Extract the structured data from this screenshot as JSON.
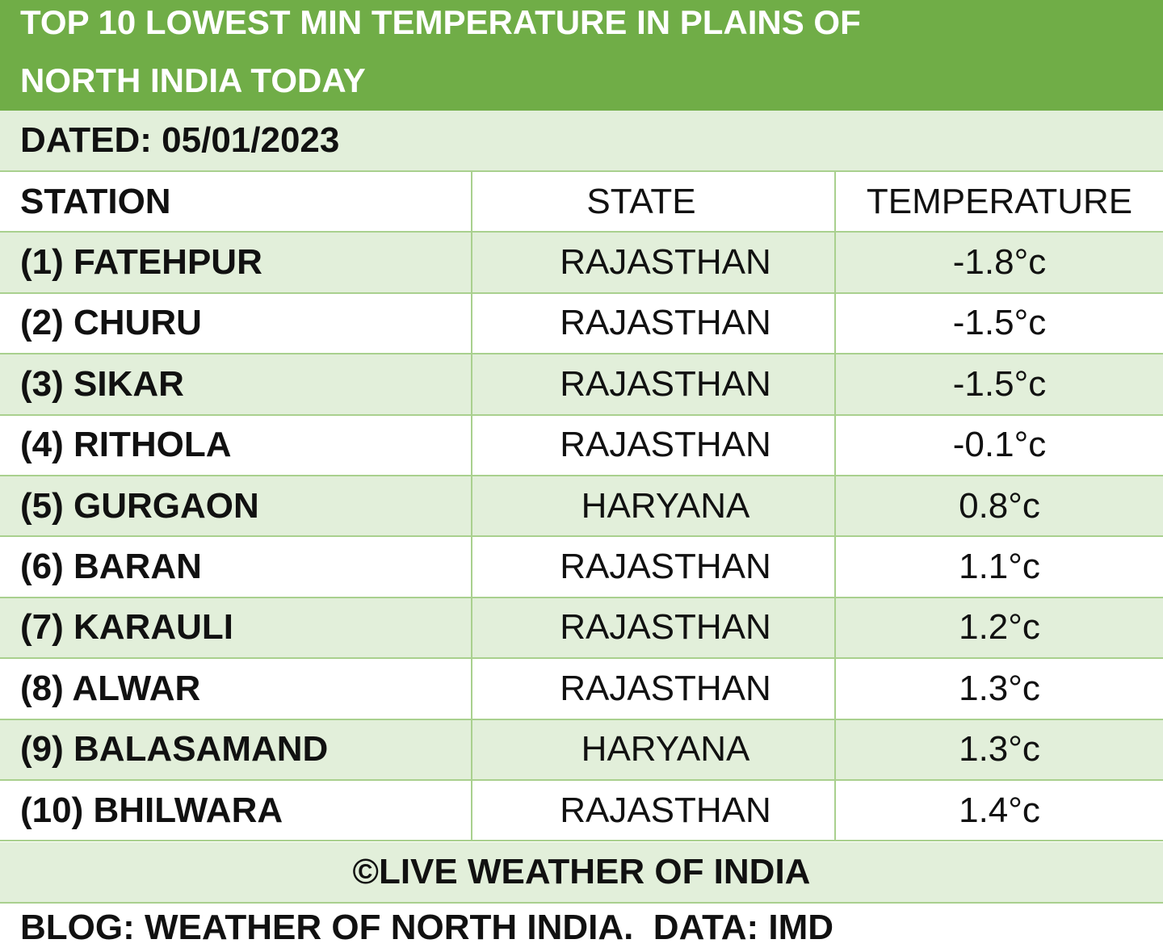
{
  "header": {
    "title_lines": [
      "TOP 10 LOWEST MIN TEMPERATURE IN PLAINS OF",
      "NORTH INDIA TODAY"
    ],
    "dated": "DATED: 05/01/2023"
  },
  "table": {
    "columns": [
      "STATION",
      "STATE",
      "TEMPERATURE"
    ],
    "rows": [
      [
        "(1) FATEHPUR",
        "RAJASTHAN",
        "-1.8°c"
      ],
      [
        "(2) CHURU",
        "RAJASTHAN",
        "-1.5°c"
      ],
      [
        "(3) SIKAR",
        "RAJASTHAN",
        "-1.5°c"
      ],
      [
        "(4) RITHOLA",
        "RAJASTHAN",
        "-0.1°c"
      ],
      [
        "(5) GURGAON",
        "HARYANA",
        "0.8°c"
      ],
      [
        "(6) BARAN",
        "RAJASTHAN",
        "1.1°c"
      ],
      [
        "(7) KARAULI",
        "RAJASTHAN",
        "1.2°c"
      ],
      [
        "(8) ALWAR",
        "RAJASTHAN",
        "1.3°c"
      ],
      [
        "(9) BALASAMAND",
        "HARYANA",
        "1.3°c"
      ],
      [
        "(10) BHILWARA",
        "RAJASTHAN",
        "1.4°c"
      ]
    ]
  },
  "footer": {
    "copyright": "©LIVE WEATHER OF INDIA",
    "source": "BLOG: WEATHER OF NORTH INDIA.  DATA: IMD"
  }
}
